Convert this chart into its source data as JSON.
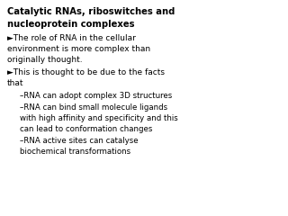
{
  "title_line1": "Catalytic RNAs, riboswitches and",
  "title_line2": "nucleoprotein complexes",
  "bullet1_line1": "►The role of RNA in the cellular",
  "bullet1_line2": "environment is more complex than",
  "bullet1_line3": "originally thought.",
  "bullet2_line1": "►This is thought to be due to the facts",
  "bullet2_line2": "that",
  "sub1": "–RNA can adopt complex 3D structures",
  "sub2_line1": "–RNA can bind small molecule ligands",
  "sub2_line2": "with high affinity and specificity and this",
  "sub2_line3": "can lead to conformation changes",
  "sub3_line1": "–RNA active sites can catalyse",
  "sub3_line2": "biochemical transformations",
  "bg_color": "#ffffff",
  "text_color": "#000000",
  "title_fontsize": 7.2,
  "body_fontsize": 6.5,
  "sub_fontsize": 6.2
}
